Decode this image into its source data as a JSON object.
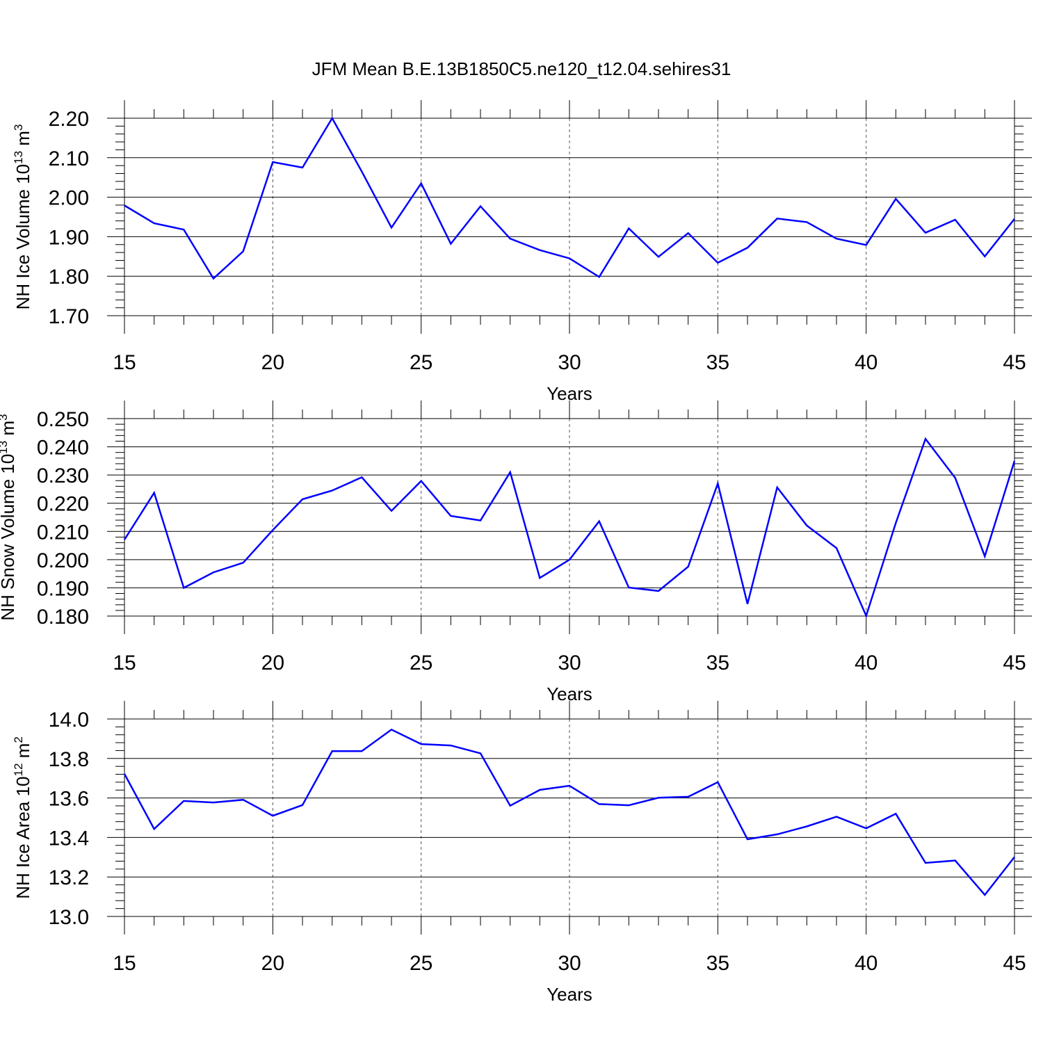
{
  "title": "JFM Mean B.E.13B1850C5.ne120_t12.04.sehires31",
  "chart_data": [
    {
      "type": "line",
      "ylabel": "NH Ice Volume 10",
      "ylabel_sup": "13",
      "ylabel_unit": " m",
      "ylabel_unit_sup": "3",
      "xlabel": "Years",
      "xlim": [
        15,
        45
      ],
      "ylim": [
        1.7,
        2.2
      ],
      "xticks": [
        15,
        20,
        25,
        30,
        35,
        40,
        45
      ],
      "yticks": [
        1.7,
        1.8,
        1.9,
        2.0,
        2.1,
        2.2
      ],
      "ytick_labels": [
        "1.70",
        "1.80",
        "1.90",
        "2.00",
        "2.10",
        "2.20"
      ],
      "xtick_labels": [
        "15",
        "20",
        "25",
        "30",
        "35",
        "40",
        "45"
      ],
      "x": [
        15,
        16,
        17,
        18,
        19,
        20,
        21,
        22,
        23,
        24,
        25,
        26,
        27,
        28,
        29,
        30,
        31,
        32,
        33,
        34,
        35,
        36,
        37,
        38,
        39,
        40,
        41,
        42,
        43,
        44,
        45
      ],
      "series": [
        {
          "color": "#0000ff",
          "values": [
            1.979,
            1.934,
            1.918,
            1.794,
            1.863,
            2.089,
            2.075,
            2.2,
            2.065,
            1.923,
            2.035,
            1.882,
            1.977,
            1.895,
            1.866,
            1.845,
            1.798,
            1.921,
            1.849,
            1.909,
            1.834,
            1.872,
            1.946,
            1.937,
            1.895,
            1.879,
            1.996,
            1.91,
            1.943,
            1.85,
            1.945
          ]
        }
      ],
      "grid": "dashed vertical at major x ticks"
    },
    {
      "type": "line",
      "ylabel": "NH Snow Volume 10",
      "ylabel_sup": "13",
      "ylabel_unit": " m",
      "ylabel_unit_sup": "3",
      "xlabel": "Years",
      "xlim": [
        15,
        45
      ],
      "ylim": [
        0.18,
        0.25
      ],
      "xticks": [
        15,
        20,
        25,
        30,
        35,
        40,
        45
      ],
      "yticks": [
        0.18,
        0.19,
        0.2,
        0.21,
        0.22,
        0.23,
        0.24,
        0.25
      ],
      "ytick_labels": [
        "0.180",
        "0.190",
        "0.200",
        "0.210",
        "0.220",
        "0.230",
        "0.240",
        "0.250"
      ],
      "xtick_labels": [
        "15",
        "20",
        "25",
        "30",
        "35",
        "40",
        "45"
      ],
      "x": [
        15,
        16,
        17,
        18,
        19,
        20,
        21,
        22,
        23,
        24,
        25,
        26,
        27,
        28,
        29,
        30,
        31,
        32,
        33,
        34,
        35,
        36,
        37,
        38,
        39,
        40,
        41,
        42,
        43,
        44,
        45
      ],
      "series": [
        {
          "color": "#0000ff",
          "values": [
            0.2071,
            0.2237,
            0.19,
            0.1955,
            0.1989,
            0.2105,
            0.2214,
            0.2245,
            0.2292,
            0.2173,
            0.2279,
            0.2155,
            0.2139,
            0.231,
            0.1935,
            0.2,
            0.2136,
            0.1901,
            0.1889,
            0.1975,
            0.227,
            0.1843,
            0.2256,
            0.2121,
            0.2041,
            0.1801,
            0.213,
            0.2428,
            0.229,
            0.2012,
            0.235
          ]
        }
      ],
      "grid": "dashed vertical at major x ticks"
    },
    {
      "type": "line",
      "ylabel": "NH Ice Area 10",
      "ylabel_sup": "12",
      "ylabel_unit": " m",
      "ylabel_unit_sup": "2",
      "xlabel": "Years",
      "xlim": [
        15,
        45
      ],
      "ylim": [
        13.0,
        14.0
      ],
      "xticks": [
        15,
        20,
        25,
        30,
        35,
        40,
        45
      ],
      "yticks": [
        13.0,
        13.2,
        13.4,
        13.6,
        13.8,
        14.0
      ],
      "ytick_labels": [
        "13.0",
        "13.2",
        "13.4",
        "13.6",
        "13.8",
        "14.0"
      ],
      "xtick_labels": [
        "15",
        "20",
        "25",
        "30",
        "35",
        "40",
        "45"
      ],
      "x": [
        15,
        16,
        17,
        18,
        19,
        20,
        21,
        22,
        23,
        24,
        25,
        26,
        27,
        28,
        29,
        30,
        31,
        32,
        33,
        34,
        35,
        36,
        37,
        38,
        39,
        40,
        41,
        42,
        43,
        44,
        45
      ],
      "series": [
        {
          "color": "#0000ff",
          "values": [
            13.722,
            13.443,
            13.585,
            13.577,
            13.591,
            13.51,
            13.564,
            13.837,
            13.837,
            13.946,
            13.873,
            13.866,
            13.826,
            13.561,
            13.641,
            13.662,
            13.569,
            13.563,
            13.601,
            13.606,
            13.68,
            13.391,
            13.416,
            13.456,
            13.505,
            13.446,
            13.52,
            13.271,
            13.283,
            13.109,
            13.301
          ]
        }
      ],
      "grid": "dashed vertical at major x ticks"
    }
  ]
}
